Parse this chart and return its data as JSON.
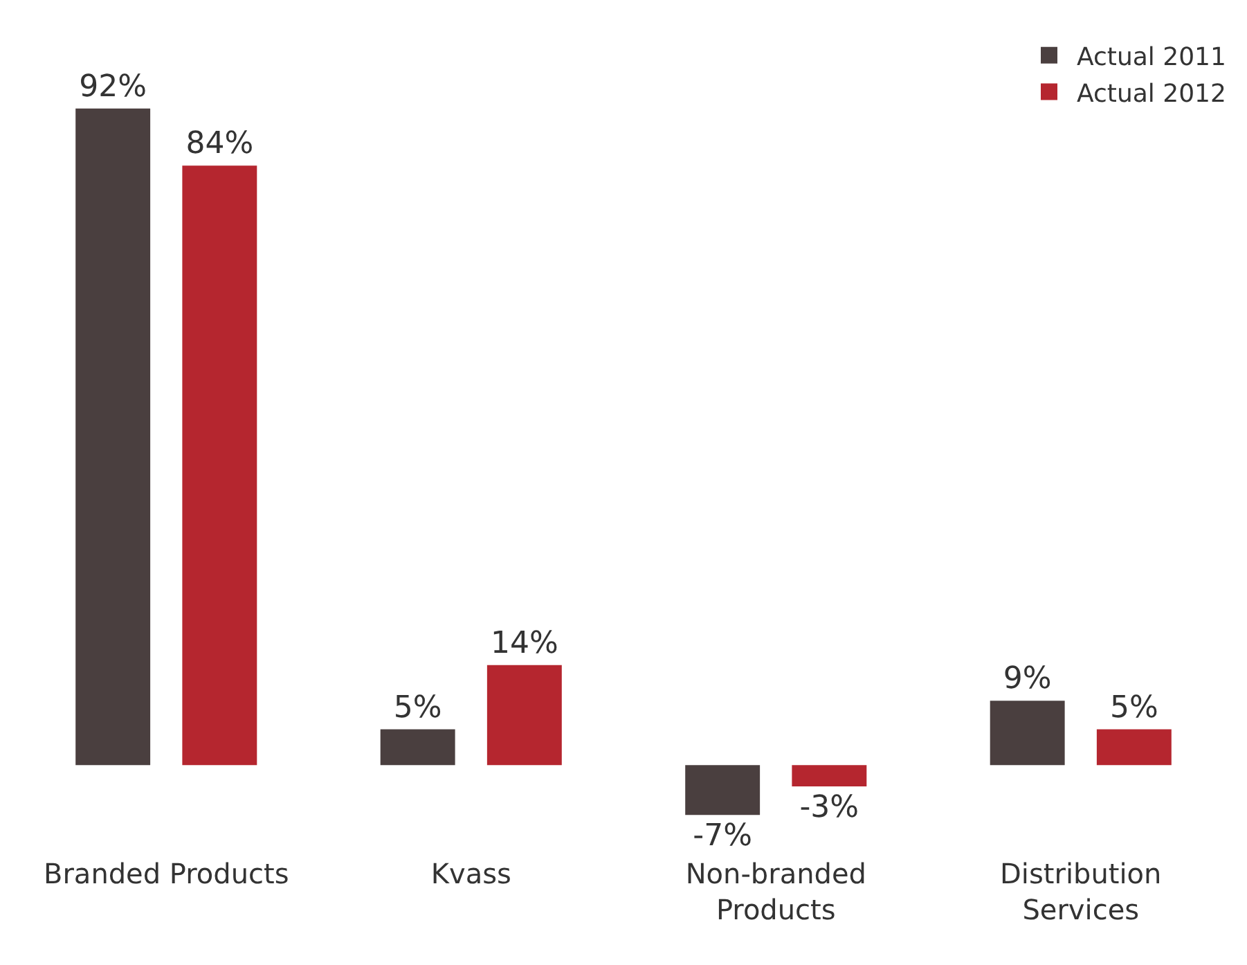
{
  "chart_data": {
    "type": "bar",
    "categories": [
      "Branded Products",
      "Kvass",
      "Non-branded Products",
      "Distribution Services"
    ],
    "series": [
      {
        "name": "Actual 2011",
        "color": "#4a3f3f",
        "values": [
          92,
          5,
          -7,
          9
        ],
        "value_labels": [
          "92%",
          "5%",
          "-7%",
          "9%"
        ]
      },
      {
        "name": "Actual 2012",
        "color": "#b5262f",
        "values": [
          84,
          14,
          -3,
          5
        ],
        "value_labels": [
          "84%",
          "14%",
          "-3%",
          "5%"
        ]
      }
    ],
    "tick_labels": "x",
    "legend": "top right"
  }
}
